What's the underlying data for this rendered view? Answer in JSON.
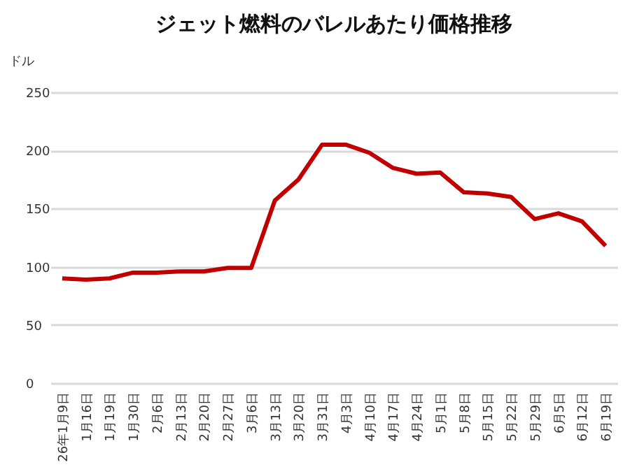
{
  "chart_data": {
    "type": "line",
    "title": "ジェット燃料のバレルあたり価格推移",
    "ylabel": "ドル",
    "categories": [
      "26年1月9日",
      "1月16日",
      "1月19日",
      "1月30日",
      "2月6日",
      "2月13日",
      "2月20日",
      "2月27日",
      "3月6日",
      "3月13日",
      "3月20日",
      "3月31日",
      "4月3日",
      "4月10日",
      "4月17日",
      "4月24日",
      "5月1日",
      "5月8日",
      "5月15日",
      "5月22日",
      "5月29日",
      "6月5日",
      "6月12日",
      "6月19日"
    ],
    "series": [
      {
        "color": "#c00000",
        "values": [
          90,
          89,
          90,
          95,
          95,
          96,
          96,
          99,
          99,
          157,
          175,
          205,
          205,
          198,
          185,
          180,
          181,
          164,
          163,
          160,
          141,
          146,
          139,
          118
        ]
      }
    ],
    "ylim": [
      0,
      250
    ],
    "yticks": [
      0,
      50,
      100,
      150,
      200,
      250
    ],
    "grid": "y"
  }
}
